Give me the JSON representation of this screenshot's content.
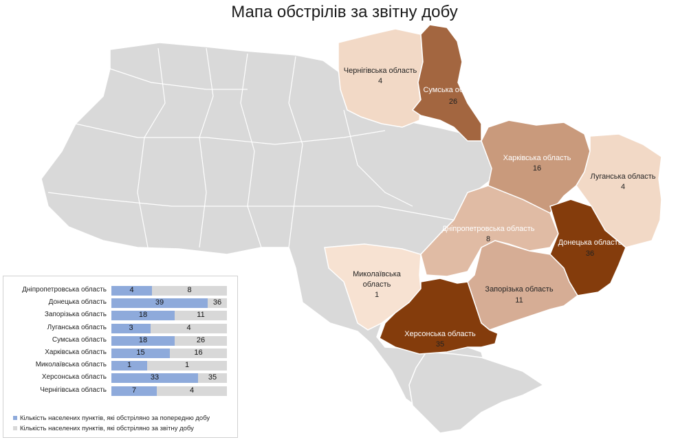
{
  "title": "Мапа обстрілів за звітну добу",
  "colors": {
    "background_region": "#d9d9d9",
    "low": "#f2d9c6",
    "mid": "#c99a7c",
    "high": "#a36640",
    "max": "#843c0c",
    "bar_prev": "#8eaadb",
    "bar_track": "#d8d8d8"
  },
  "regions": [
    {
      "name": "Чернігівська область",
      "value": "4"
    },
    {
      "name": "Сумська область",
      "value": "26"
    },
    {
      "name": "Харківська область",
      "value": "16"
    },
    {
      "name": "Луганська область",
      "value": "4"
    },
    {
      "name": "Дніпропетровська область",
      "value": "8"
    },
    {
      "name": "Донецька область",
      "value": "36"
    },
    {
      "name": "Миколаївська",
      "name2": "область",
      "value": "1"
    },
    {
      "name": "Запорізька область",
      "value": "11"
    },
    {
      "name": "Херсонська область",
      "value": "35"
    }
  ],
  "legend_rows": [
    {
      "label": "Дніпропетровська область",
      "prev": 4,
      "cur": 8
    },
    {
      "label": "Донецька область",
      "prev": 39,
      "cur": 36
    },
    {
      "label": "Запорізька область",
      "prev": 18,
      "cur": 11
    },
    {
      "label": "Луганська область",
      "prev": 3,
      "cur": 4
    },
    {
      "label": "Сумська область",
      "prev": 18,
      "cur": 26
    },
    {
      "label": "Харківська область",
      "prev": 15,
      "cur": 16
    },
    {
      "label": "Миколаївська область",
      "prev": 1,
      "cur": 1
    },
    {
      "label": "Херсонська область",
      "prev": 33,
      "cur": 35
    },
    {
      "label": "Чернігівська область",
      "prev": 7,
      "cur": 4
    }
  ],
  "legend": {
    "prev_label": "Кількість населених пунктів, які обстріляно за попередню добу",
    "cur_label": "Кількість населених пунктів, які обстріляно за звітну добу"
  }
}
